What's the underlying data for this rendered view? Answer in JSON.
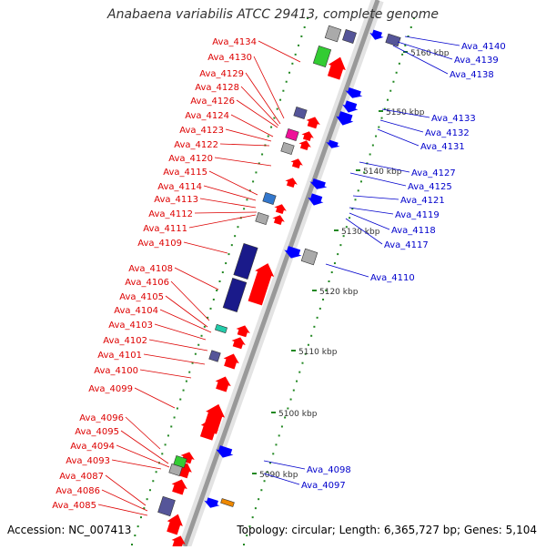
{
  "title": "Anabaena variabilis ATCC 29413, complete genome",
  "footer": {
    "accession": "Accession: NC_007413",
    "summary": "Topology: circular; Length: 6,365,727 bp; Genes: 5,104"
  },
  "colors": {
    "left_labels": "#dd0000",
    "right_labels": "#0000cc",
    "backbone": "#999999",
    "ticks": "#228822",
    "forward_gene": "#ff0000",
    "reverse_gene": "#0000ff",
    "dark_block": "#1a1a8a",
    "purple_block": "#555599",
    "magenta_block": "#ee1199",
    "green_block": "#33cc33",
    "cyan_block": "#22ccaa",
    "gray_block": "#aaaaaa",
    "orange_block": "#ee8800"
  },
  "scale_labels": [
    "5090 kbp",
    "5100 kbp",
    "5110 kbp",
    "5120 kbp",
    "5130 kbp",
    "5140 kbp",
    "5150 kbp",
    "5160 kbp"
  ],
  "left_labels": [
    "Ava_4134",
    "Ava_4130",
    "Ava_4129",
    "Ava_4128",
    "Ava_4126",
    "Ava_4124",
    "Ava_4123",
    "Ava_4122",
    "Ava_4120",
    "Ava_4115",
    "Ava_4114",
    "Ava_4113",
    "Ava_4112",
    "Ava_4111",
    "Ava_4109",
    "Ava_4108",
    "Ava_4106",
    "Ava_4105",
    "Ava_4104",
    "Ava_4103",
    "Ava_4102",
    "Ava_4101",
    "Ava_4100",
    "Ava_4099",
    "Ava_4096",
    "Ava_4095",
    "Ava_4094",
    "Ava_4093",
    "Ava_4087",
    "Ava_4086",
    "Ava_4085"
  ],
  "right_labels": [
    "Ava_4140",
    "Ava_4139",
    "Ava_4138",
    "Ava_4133",
    "Ava_4132",
    "Ava_4131",
    "Ava_4127",
    "Ava_4125",
    "Ava_4121",
    "Ava_4119",
    "Ava_4118",
    "Ava_4117",
    "Ava_4110",
    "Ava_4098",
    "Ava_4097"
  ]
}
